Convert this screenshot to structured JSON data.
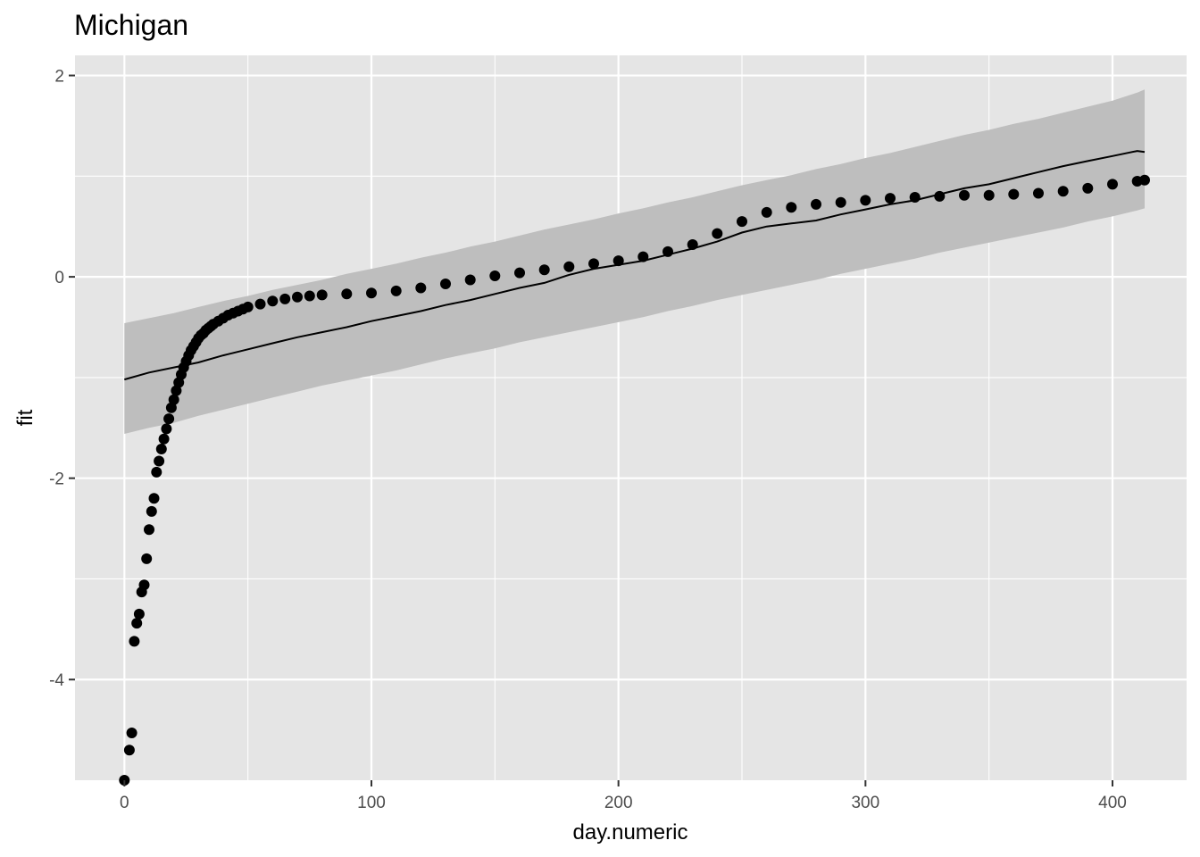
{
  "chart_data": {
    "type": "scatter",
    "title": "Michigan",
    "xlabel": "day.numeric",
    "ylabel": "fit",
    "xlim": [
      -20,
      430
    ],
    "ylim": [
      -5,
      2.2
    ],
    "x_ticks": [
      0,
      100,
      200,
      300,
      400
    ],
    "x_minor_ticks": [
      50,
      150,
      250,
      350
    ],
    "y_ticks": [
      -4,
      -2,
      0,
      2
    ],
    "y_minor_ticks": [
      -3,
      -1,
      1
    ],
    "grid": true,
    "panel_color": "#e5e5e5",
    "grid_color": "#ffffff",
    "band_color": "#bebebe",
    "point_color": "#000000",
    "line_color": "#000000",
    "points": {
      "x": [
        0,
        2,
        3,
        4,
        5,
        6,
        7,
        8,
        9,
        10,
        11,
        12,
        13,
        14,
        15,
        16,
        17,
        18,
        19,
        20,
        21,
        22,
        23,
        24,
        25,
        26,
        27,
        28,
        29,
        30,
        31,
        32,
        33,
        34,
        35,
        36,
        38,
        40,
        42,
        44,
        46,
        48,
        50,
        55,
        60,
        65,
        70,
        75,
        80,
        90,
        100,
        110,
        120,
        130,
        140,
        150,
        160,
        170,
        180,
        190,
        200,
        210,
        220,
        230,
        240,
        250,
        260,
        270,
        280,
        290,
        300,
        310,
        320,
        330,
        340,
        350,
        360,
        370,
        380,
        390,
        400,
        410,
        413
      ],
      "y": [
        -5.05,
        -4.7,
        -4.53,
        -3.62,
        -3.44,
        -3.35,
        -3.13,
        -3.06,
        -2.8,
        -2.51,
        -2.33,
        -2.2,
        -1.94,
        -1.83,
        -1.71,
        -1.61,
        -1.51,
        -1.41,
        -1.3,
        -1.22,
        -1.13,
        -1.05,
        -0.97,
        -0.9,
        -0.84,
        -0.78,
        -0.73,
        -0.69,
        -0.65,
        -0.61,
        -0.58,
        -0.56,
        -0.53,
        -0.51,
        -0.49,
        -0.47,
        -0.44,
        -0.41,
        -0.38,
        -0.36,
        -0.34,
        -0.32,
        -0.3,
        -0.27,
        -0.24,
        -0.22,
        -0.2,
        -0.19,
        -0.18,
        -0.17,
        -0.16,
        -0.14,
        -0.11,
        -0.07,
        -0.03,
        0.01,
        0.04,
        0.07,
        0.1,
        0.13,
        0.16,
        0.2,
        0.25,
        0.32,
        0.43,
        0.55,
        0.64,
        0.69,
        0.72,
        0.74,
        0.76,
        0.78,
        0.79,
        0.8,
        0.81,
        0.81,
        0.82,
        0.83,
        0.85,
        0.88,
        0.92,
        0.95,
        0.96
      ]
    },
    "line": {
      "x": [
        0,
        10,
        20,
        30,
        40,
        50,
        60,
        70,
        80,
        90,
        100,
        110,
        120,
        130,
        140,
        150,
        160,
        170,
        180,
        190,
        200,
        210,
        220,
        230,
        240,
        250,
        260,
        270,
        280,
        290,
        300,
        310,
        320,
        330,
        340,
        350,
        360,
        370,
        380,
        390,
        400,
        410,
        413
      ],
      "y": [
        -1.02,
        -0.95,
        -0.9,
        -0.85,
        -0.78,
        -0.72,
        -0.66,
        -0.6,
        -0.55,
        -0.5,
        -0.44,
        -0.39,
        -0.34,
        -0.28,
        -0.23,
        -0.17,
        -0.11,
        -0.06,
        0.02,
        0.08,
        0.12,
        0.16,
        0.22,
        0.28,
        0.35,
        0.44,
        0.5,
        0.53,
        0.56,
        0.62,
        0.67,
        0.72,
        0.76,
        0.82,
        0.88,
        0.92,
        0.98,
        1.04,
        1.1,
        1.15,
        1.2,
        1.25,
        1.24
      ]
    },
    "band": {
      "x": [
        0,
        10,
        20,
        30,
        40,
        50,
        60,
        70,
        80,
        90,
        100,
        110,
        120,
        130,
        140,
        150,
        160,
        170,
        180,
        190,
        200,
        210,
        220,
        230,
        240,
        250,
        260,
        270,
        280,
        290,
        300,
        310,
        320,
        330,
        340,
        350,
        360,
        370,
        380,
        390,
        400,
        410,
        413
      ],
      "lower": [
        -1.56,
        -1.5,
        -1.45,
        -1.38,
        -1.32,
        -1.26,
        -1.2,
        -1.14,
        -1.08,
        -1.03,
        -0.98,
        -0.93,
        -0.87,
        -0.81,
        -0.76,
        -0.71,
        -0.65,
        -0.6,
        -0.55,
        -0.5,
        -0.45,
        -0.4,
        -0.34,
        -0.29,
        -0.23,
        -0.18,
        -0.13,
        -0.08,
        -0.03,
        0.03,
        0.08,
        0.13,
        0.18,
        0.24,
        0.29,
        0.34,
        0.39,
        0.44,
        0.49,
        0.55,
        0.6,
        0.66,
        0.68
      ],
      "upper": [
        -0.46,
        -0.41,
        -0.36,
        -0.3,
        -0.24,
        -0.19,
        -0.13,
        -0.08,
        -0.03,
        0.03,
        0.08,
        0.13,
        0.19,
        0.24,
        0.3,
        0.35,
        0.41,
        0.47,
        0.52,
        0.57,
        0.63,
        0.68,
        0.74,
        0.79,
        0.85,
        0.91,
        0.96,
        1.01,
        1.07,
        1.12,
        1.18,
        1.23,
        1.29,
        1.35,
        1.41,
        1.46,
        1.52,
        1.57,
        1.63,
        1.69,
        1.75,
        1.83,
        1.86
      ]
    }
  }
}
